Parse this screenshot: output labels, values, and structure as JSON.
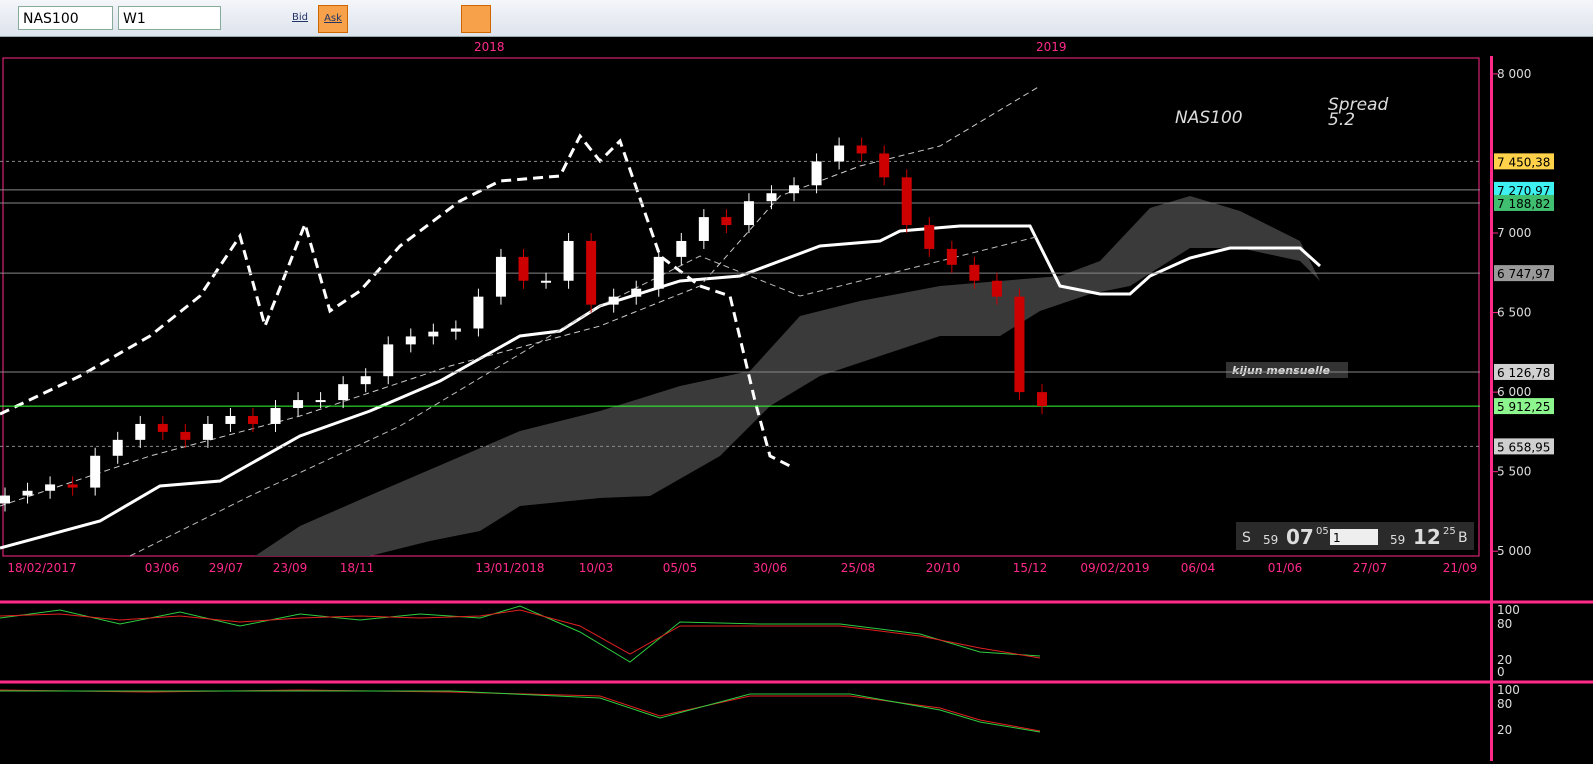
{
  "toolbar": {
    "symbol": "NAS100",
    "timeframe": "W1",
    "bid": "Bid",
    "ask": "Ask"
  },
  "chart_data": {
    "type": "candlestick",
    "symbol_label": "NAS100",
    "spread_label": "Spread",
    "spread_value": "5.2",
    "annotation": "kijun mensuelle",
    "years": [
      "2018",
      "2019"
    ],
    "x_labels": [
      "18/02/2017",
      "03/06",
      "29/07",
      "23/09",
      "18/11",
      "13/01/2018",
      "10/03",
      "05/05",
      "30/06",
      "25/08",
      "20/10",
      "15/12",
      "09/02/2019",
      "06/04",
      "01/06",
      "27/07",
      "21/09"
    ],
    "ylim": [
      4970,
      8100
    ],
    "yticks": [
      {
        "value": 8000,
        "label": "8 000"
      },
      {
        "value": 7000,
        "label": "7 000"
      },
      {
        "value": 6500,
        "label": "6 500"
      },
      {
        "value": 6000,
        "label": "6 000"
      },
      {
        "value": 5500,
        "label": "5 500"
      },
      {
        "value": 5000,
        "label": "5 000"
      }
    ],
    "levels": [
      {
        "value": 7450.38,
        "label": "7 450,38",
        "color": "#ffd24a"
      },
      {
        "value": 7270.97,
        "label": "7 270,97",
        "color": "#3ff0f0"
      },
      {
        "value": 7188.82,
        "label": "7 188,82",
        "color": "#3fbf6f"
      },
      {
        "value": 6747.97,
        "label": "6 747,97",
        "color": "#9a9a9a"
      },
      {
        "value": 6126.78,
        "label": "6 126,78",
        "color": "#d0d0d0"
      },
      {
        "value": 5912.25,
        "label": "5 912,25",
        "color": "#8df58d"
      },
      {
        "value": 5658.95,
        "label": "5 658,95",
        "color": "#d0d0d0"
      }
    ],
    "open": 5300,
    "closes": [
      5350,
      5380,
      5420,
      5400,
      5600,
      5700,
      5800,
      5750,
      5700,
      5800,
      5850,
      5800,
      5900,
      5950,
      5950,
      6050,
      6100,
      6300,
      6350,
      6380,
      6400,
      6600,
      6850,
      6700,
      6700,
      6950,
      6550,
      6600,
      6650,
      6850,
      6950,
      7100,
      7050,
      7200,
      7250,
      7300,
      7450,
      7550,
      7500,
      7350,
      7050,
      6900,
      6800,
      6700,
      6600,
      6000,
      5912.25
    ],
    "osc_ticks": [
      "100",
      "80",
      "20",
      "0"
    ],
    "osc2_ticks": [
      "100",
      "80",
      "20"
    ],
    "clock": {
      "s": "S",
      "a": "59",
      "b": "07",
      "c": "05",
      "d": "1",
      "e": "59",
      "f": "12",
      "g": "25",
      "h": "B"
    }
  }
}
